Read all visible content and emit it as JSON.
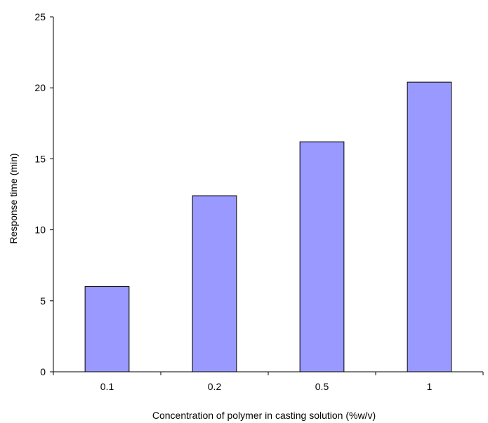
{
  "chart_data": {
    "type": "bar",
    "title": "",
    "xlabel": "Concentration of polymer in casting solution (%w/v)",
    "ylabel": "Response time (min)",
    "categories": [
      "0.1",
      "0.2",
      "0.5",
      "1"
    ],
    "values": [
      6.0,
      12.4,
      16.2,
      20.4
    ],
    "ylim": [
      0,
      25
    ],
    "yticks": [
      "0",
      "5",
      "10",
      "15",
      "20",
      "25"
    ],
    "grid": false,
    "legend": "none",
    "bar_color": "#9999ff"
  }
}
